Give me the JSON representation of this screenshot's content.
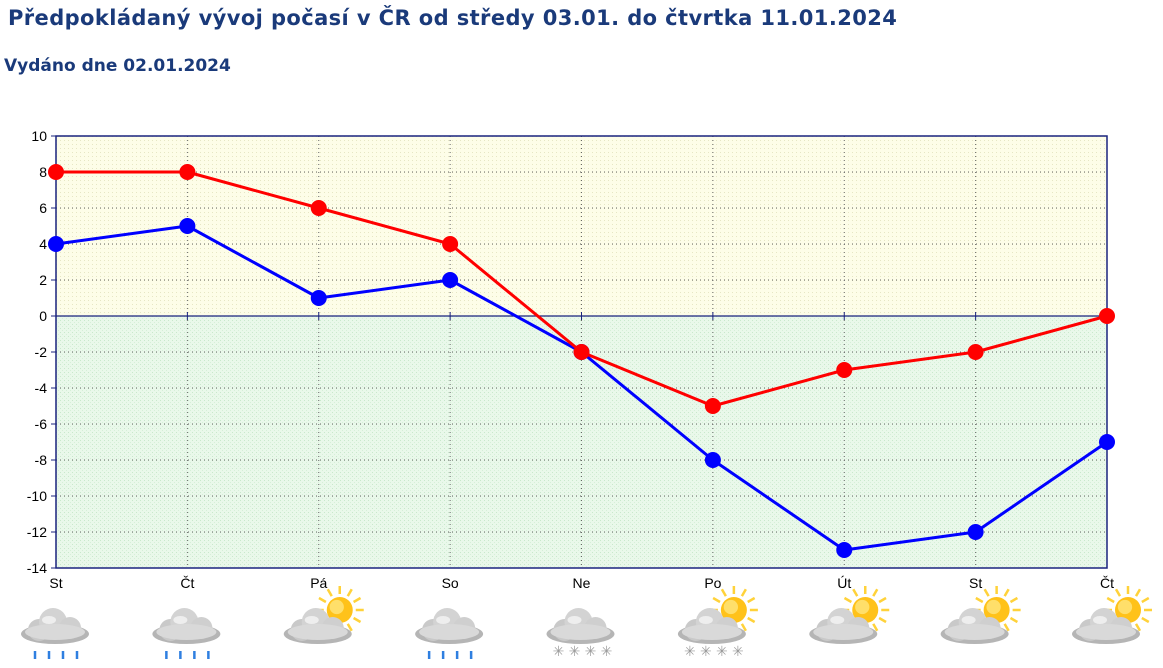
{
  "header": {
    "title": "Předpokládaný vývoj počasí v ČR od středy 03.01. do čtvrtka 11.01.2024",
    "issued": "Vydáno dne 02.01.2024"
  },
  "colors": {
    "max_series": "#ff0000",
    "min_series": "#0000ff",
    "positive_band": "#fdfde8",
    "negative_band": "#e9f8ea",
    "axis": "#1a237e"
  },
  "chart_data": {
    "type": "line",
    "categories": [
      "St",
      "Čt",
      "Pá",
      "So",
      "Ne",
      "Po",
      "Út",
      "St",
      "Čt"
    ],
    "series": [
      {
        "values": [
          8,
          8,
          6,
          4,
          -2,
          -5,
          -3,
          -2,
          0
        ],
        "color": "#ff0000"
      },
      {
        "values": [
          4,
          5,
          1,
          2,
          -2,
          -8,
          -13,
          -12,
          -7
        ],
        "color": "#0000ff"
      }
    ],
    "yticks": [
      10,
      8,
      6,
      4,
      2,
      0,
      -2,
      -4,
      -6,
      -8,
      -10,
      -12,
      -14
    ],
    "ylim": [
      -14,
      10
    ],
    "grid": true,
    "weather_icons": [
      "rain-cloud-icon",
      "rain-cloud-icon",
      "sun-cloud-icon",
      "rain-cloud-icon",
      "snow-cloud-icon",
      "snow-sun-cloud-icon",
      "sun-cloud-icon",
      "sun-cloud-icon",
      "sun-cloud-icon"
    ]
  }
}
